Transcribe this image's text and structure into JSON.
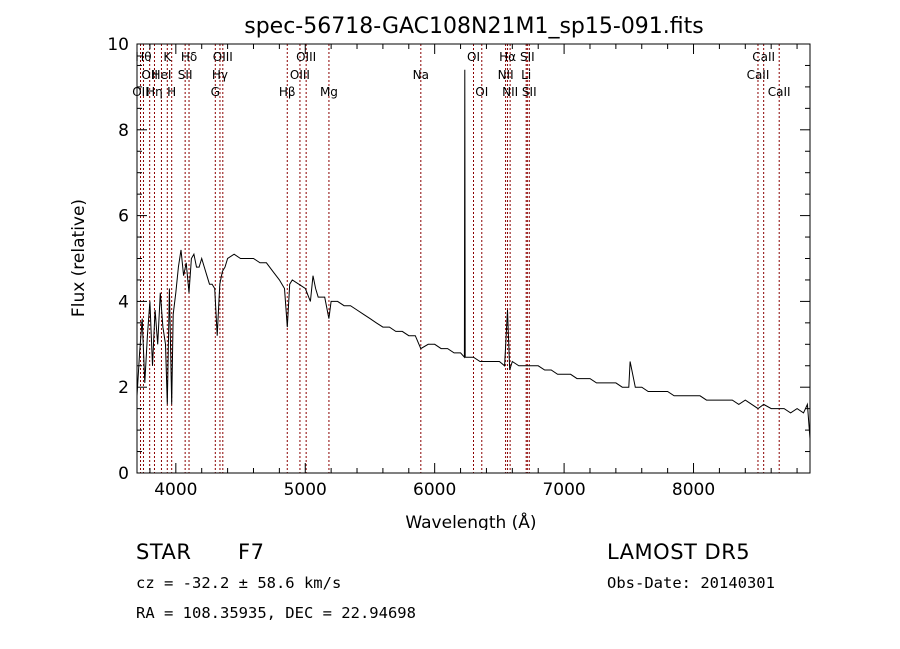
{
  "chart_data": {
    "type": "line",
    "title": "spec-56718-GAC108N21M1_sp15-091.fits",
    "xlabel": "Wavelength (Å)",
    "ylabel": "Flux (relative)",
    "xlim": [
      3700,
      8900
    ],
    "ylim": [
      0,
      10
    ],
    "xticks": [
      4000,
      5000,
      6000,
      7000,
      8000
    ],
    "xtick_labels": [
      "4000",
      "5000",
      "6000",
      "7000",
      "8000"
    ],
    "yticks": [
      0,
      2,
      4,
      6,
      8,
      10
    ],
    "ytick_labels": [
      "0",
      "2",
      "4",
      "6",
      "8",
      "10"
    ],
    "grid": false,
    "line_color": "#000000",
    "marker_color": "#8b0000",
    "series": [
      {
        "x": [
          3700,
          3720,
          3740,
          3760,
          3780,
          3800,
          3820,
          3840,
          3860,
          3880,
          3900,
          3920,
          3934,
          3950,
          3968,
          3980,
          4000,
          4020,
          4040,
          4060,
          4080,
          4102,
          4120,
          4140,
          4160,
          4180,
          4200,
          4220,
          4240,
          4260,
          4280,
          4300,
          4320,
          4340,
          4360,
          4380,
          4400,
          4450,
          4500,
          4550,
          4600,
          4650,
          4700,
          4750,
          4800,
          4840,
          4861,
          4880,
          4900,
          4950,
          5000,
          5040,
          5060,
          5080,
          5100,
          5150,
          5183,
          5200,
          5250,
          5300,
          5350,
          5400,
          5450,
          5500,
          5550,
          5600,
          5650,
          5700,
          5750,
          5800,
          5850,
          5893,
          5950,
          6000,
          6050,
          6100,
          6150,
          6200,
          6230,
          6233,
          6236,
          6250,
          6300,
          6350,
          6400,
          6450,
          6500,
          6540,
          6563,
          6580,
          6600,
          6650,
          6700,
          6750,
          6800,
          6850,
          6900,
          6950,
          7000,
          7050,
          7100,
          7150,
          7200,
          7250,
          7300,
          7350,
          7400,
          7450,
          7500,
          7510,
          7550,
          7600,
          7650,
          7700,
          7750,
          7800,
          7850,
          7900,
          7950,
          8000,
          8050,
          8100,
          8150,
          8200,
          8250,
          8300,
          8350,
          8400,
          8450,
          8498,
          8542,
          8600,
          8662,
          8700,
          8750,
          8800,
          8850,
          8880,
          8900
        ],
        "y": [
          1.8,
          2.8,
          3.6,
          2.1,
          3.2,
          4.0,
          2.5,
          3.8,
          3.0,
          4.2,
          3.4,
          3.0,
          1.6,
          4.3,
          1.6,
          3.7,
          4.2,
          4.8,
          5.2,
          4.6,
          4.9,
          4.2,
          5.0,
          5.1,
          4.8,
          4.8,
          5.0,
          4.8,
          4.6,
          4.4,
          4.4,
          4.3,
          3.2,
          4.4,
          4.7,
          4.8,
          5.0,
          5.1,
          5.0,
          5.0,
          5.0,
          4.9,
          4.9,
          4.7,
          4.5,
          4.3,
          3.4,
          4.4,
          4.5,
          4.4,
          4.3,
          4.0,
          4.6,
          4.3,
          4.1,
          4.1,
          3.6,
          4.0,
          4.0,
          3.9,
          3.9,
          3.8,
          3.7,
          3.6,
          3.5,
          3.4,
          3.4,
          3.3,
          3.3,
          3.2,
          3.2,
          2.9,
          3.0,
          3.0,
          2.9,
          2.9,
          2.8,
          2.8,
          2.7,
          9.4,
          2.7,
          2.7,
          2.7,
          2.6,
          2.6,
          2.6,
          2.6,
          2.5,
          3.8,
          2.4,
          2.6,
          2.5,
          2.5,
          2.5,
          2.5,
          2.4,
          2.4,
          2.3,
          2.3,
          2.3,
          2.2,
          2.2,
          2.2,
          2.1,
          2.1,
          2.1,
          2.1,
          2.0,
          2.0,
          2.6,
          2.0,
          2.0,
          1.9,
          1.9,
          1.9,
          1.9,
          1.8,
          1.8,
          1.8,
          1.8,
          1.8,
          1.7,
          1.7,
          1.7,
          1.7,
          1.7,
          1.6,
          1.7,
          1.6,
          1.5,
          1.6,
          1.5,
          1.5,
          1.5,
          1.4,
          1.5,
          1.4,
          1.6,
          0.8
        ]
      }
    ],
    "lines": [
      {
        "x": 3727,
        "labels": [
          "OII"
        ],
        "row": 3
      },
      {
        "x": 3750,
        "labels": [
          "Hθ"
        ],
        "row": 1
      },
      {
        "x": 3798,
        "labels": [
          "OII"
        ],
        "row": 2
      },
      {
        "x": 3835,
        "labels": [
          "Hη"
        ],
        "row": 3
      },
      {
        "x": 3889,
        "labels": [
          "HeI"
        ],
        "row": 2
      },
      {
        "x": 3934,
        "labels": [
          "K"
        ],
        "row": 1
      },
      {
        "x": 3968,
        "labels": [
          "H"
        ],
        "row": 3
      },
      {
        "x": 4072,
        "labels": [
          "SII"
        ],
        "row": 2
      },
      {
        "x": 4102,
        "labels": [
          "Hδ"
        ],
        "row": 1
      },
      {
        "x": 4305,
        "labels": [
          "G"
        ],
        "row": 3
      },
      {
        "x": 4341,
        "labels": [
          "Hγ"
        ],
        "row": 2
      },
      {
        "x": 4363,
        "labels": [
          "OIII"
        ],
        "row": 1
      },
      {
        "x": 4861,
        "labels": [
          "Hβ"
        ],
        "row": 3
      },
      {
        "x": 4959,
        "labels": [
          "OIII"
        ],
        "row": 2
      },
      {
        "x": 5007,
        "labels": [
          "OIII"
        ],
        "row": 1
      },
      {
        "x": 5183,
        "labels": [
          "Mg"
        ],
        "row": 3
      },
      {
        "x": 5893,
        "labels": [
          "Na"
        ],
        "row": 2
      },
      {
        "x": 6300,
        "labels": [
          "OI"
        ],
        "row": 1
      },
      {
        "x": 6364,
        "labels": [
          "OI"
        ],
        "row": 3
      },
      {
        "x": 6548,
        "labels": [
          "NII"
        ],
        "row": 2
      },
      {
        "x": 6563,
        "labels": [
          "Hα"
        ],
        "row": 1
      },
      {
        "x": 6583,
        "labels": [
          "NII"
        ],
        "row": 3
      },
      {
        "x": 6707,
        "labels": [
          "Li"
        ],
        "row": 2
      },
      {
        "x": 6716,
        "labels": [
          "SII"
        ],
        "row": 1
      },
      {
        "x": 6731,
        "labels": [
          "SII"
        ],
        "row": 3
      },
      {
        "x": 8498,
        "labels": [
          "CaII"
        ],
        "row": 2
      },
      {
        "x": 8542,
        "labels": [
          "CaII"
        ],
        "row": 1
      },
      {
        "x": 8662,
        "labels": [
          "CaII"
        ],
        "row": 3
      }
    ]
  },
  "info": {
    "class_label": "STAR",
    "subclass": "F7",
    "survey": "LAMOST DR5",
    "cz": "cz = -32.2 ± 58.6 km/s",
    "obs_date": "Obs-Date: 20140301",
    "coords": "RA = 108.35935, DEC =  22.94698"
  }
}
